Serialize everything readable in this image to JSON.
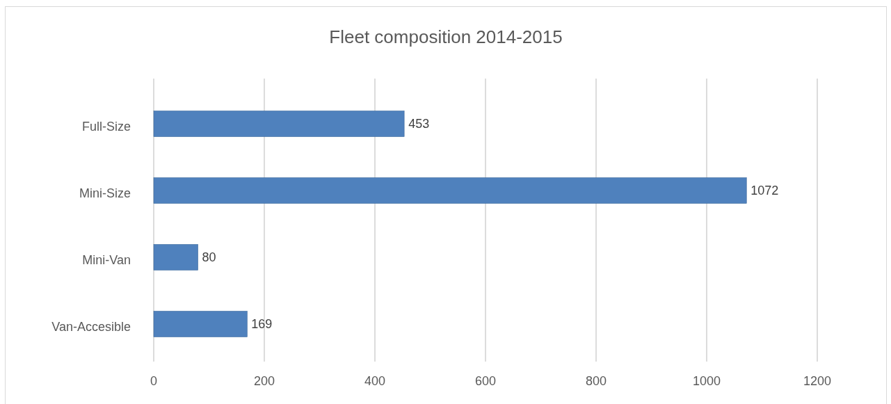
{
  "chart_data": {
    "type": "bar",
    "orientation": "horizontal",
    "title": "Fleet composition 2014-2015",
    "categories": [
      "Full-Size",
      "Mini-Size",
      "Mini-Van",
      "Van-Accesible"
    ],
    "values": [
      453,
      1072,
      80,
      169
    ],
    "color": "#4f81bd",
    "xlim": [
      0,
      1200
    ],
    "xticks": [
      0,
      200,
      400,
      600,
      800,
      1000,
      1200
    ],
    "grid": "x",
    "data_labels": true
  }
}
